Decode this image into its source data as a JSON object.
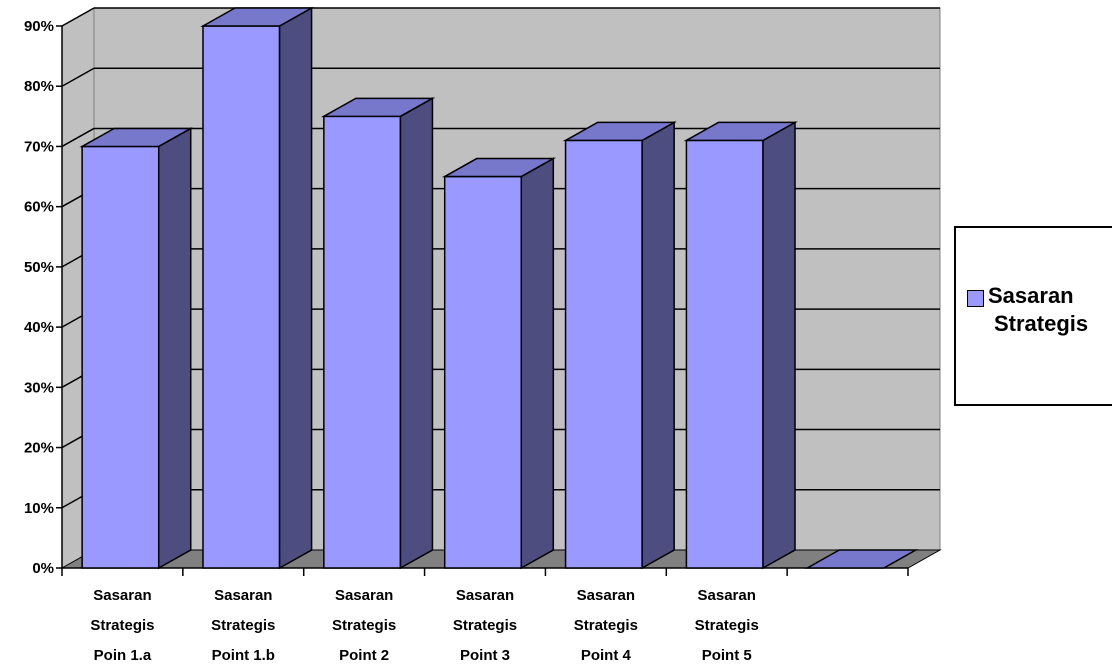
{
  "chart_data": {
    "type": "bar",
    "categories": [
      [
        "Sasaran",
        "Strategis",
        "Poin 1.a"
      ],
      [
        "Sasaran",
        "Strategis",
        "Point 1.b"
      ],
      [
        "Sasaran",
        "Strategis",
        "Point 2"
      ],
      [
        "Sasaran",
        "Strategis",
        "Point 3"
      ],
      [
        "Sasaran",
        "Strategis",
        "Point 4"
      ],
      [
        "Sasaran",
        "Strategis",
        "Point 5"
      ],
      []
    ],
    "series": [
      {
        "name": "Sasaran Strategis",
        "values": [
          70,
          90,
          75,
          65,
          71,
          71,
          0
        ]
      }
    ],
    "y_ticks": [
      "0%",
      "10%",
      "20%",
      "30%",
      "40%",
      "50%",
      "60%",
      "70%",
      "80%",
      "90%"
    ],
    "ylim": [
      0,
      90
    ],
    "y_unit": "%",
    "grid": true,
    "legend_position": "right",
    "colors": {
      "bar_front": "#9999ff",
      "bar_side": "#4d4d80",
      "bar_top": "#7777cc",
      "back_wall": "#c0c0c0",
      "floor": "#808080"
    }
  },
  "legend": {
    "label_line1": "Sasaran",
    "label_line2": "Strategis"
  }
}
